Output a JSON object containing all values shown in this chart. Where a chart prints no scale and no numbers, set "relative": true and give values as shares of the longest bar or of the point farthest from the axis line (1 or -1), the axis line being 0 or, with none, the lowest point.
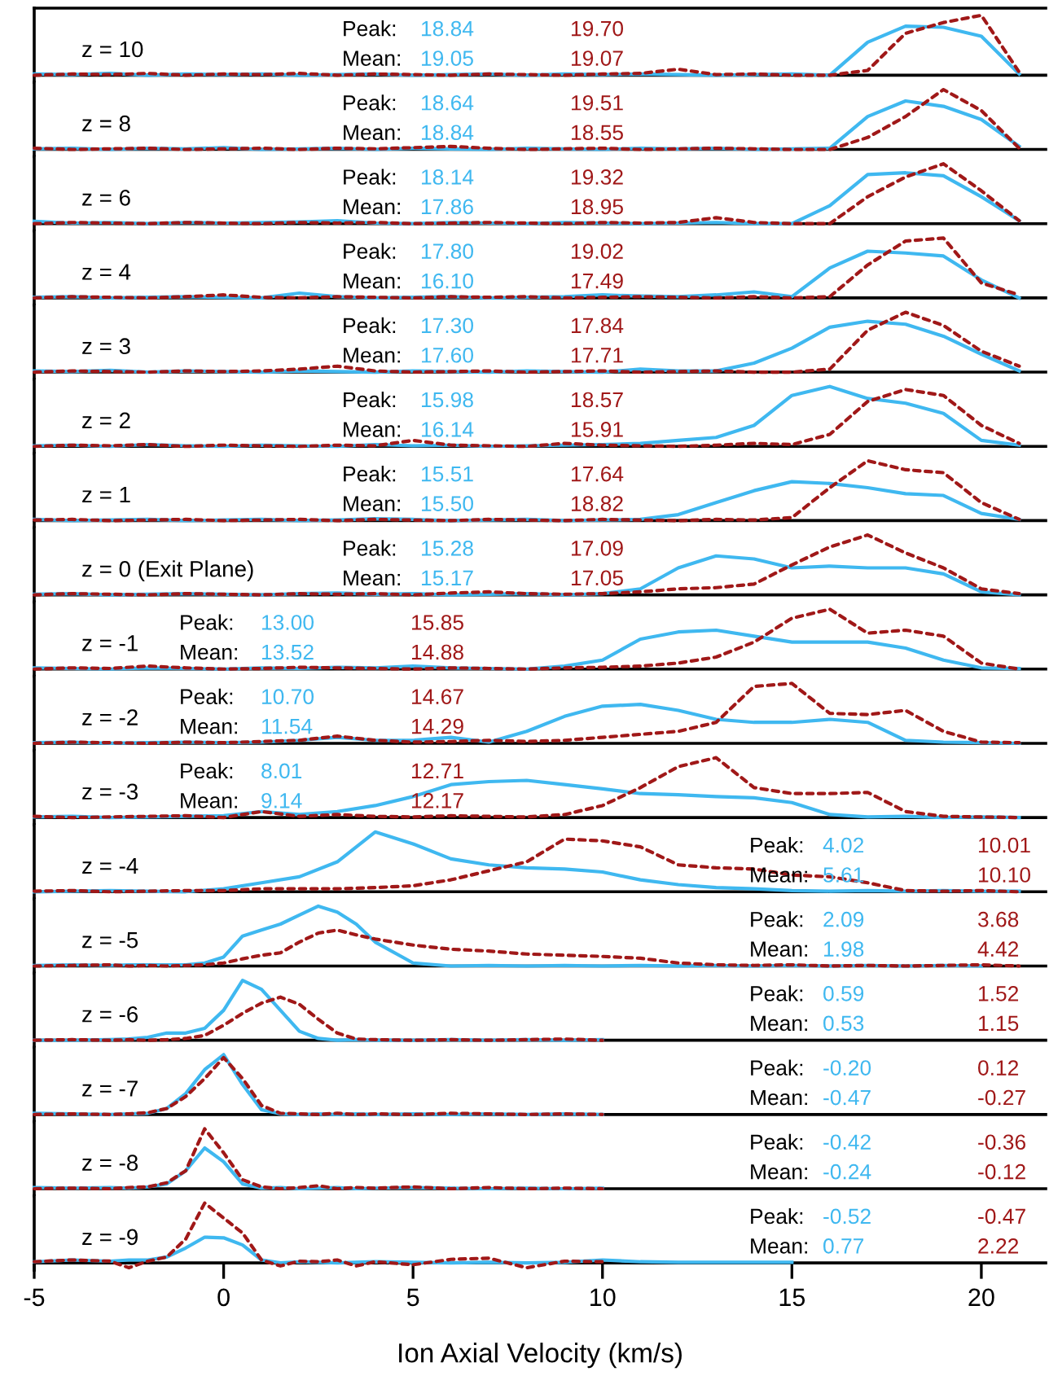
{
  "chart_data": [
    {
      "type": "line",
      "relative": true,
      "xlim": [
        -5,
        21.7
      ],
      "tick_labels": false,
      "x": [
        -5,
        -4,
        -3,
        -2,
        -1,
        0,
        1,
        2,
        3,
        4,
        5,
        6,
        7,
        8,
        9,
        10,
        11,
        12,
        13,
        14,
        15,
        16,
        17,
        18,
        19,
        20,
        21
      ],
      "series": [
        {
          "color": "#3fb8f0",
          "line_style": "solid",
          "values": [
            0.02,
            0.01,
            0.03,
            0.0,
            0.02,
            0.01,
            0.02,
            0.0,
            0.01,
            0.02,
            0.0,
            0.01,
            0.02,
            0.0,
            0.02,
            0.01,
            0.02,
            0.01,
            0.0,
            0.01,
            0.02,
            0.0,
            0.55,
            0.82,
            0.8,
            0.65,
            0.02
          ]
        },
        {
          "color": "#a01818",
          "line_style": "dotted",
          "values": [
            0.0,
            0.02,
            0.01,
            0.03,
            0.0,
            0.02,
            0.01,
            0.03,
            0.0,
            0.02,
            0.01,
            0.0,
            0.02,
            0.01,
            0.0,
            0.02,
            0.03,
            0.1,
            0.01,
            0.02,
            0.0,
            0.0,
            0.08,
            0.7,
            0.88,
            1.0,
            0.05
          ]
        }
      ],
      "annotations": [
        "z = 10",
        "Peak:",
        "Mean:",
        "18.84",
        "19.05",
        "19.70",
        "19.07"
      ]
    },
    {
      "type": "line",
      "relative": true,
      "xlim": [
        -5,
        21.7
      ],
      "tick_labels": false,
      "x": [
        -5,
        -4,
        -3,
        -2,
        -1,
        0,
        1,
        2,
        3,
        4,
        5,
        6,
        7,
        8,
        9,
        10,
        11,
        12,
        13,
        14,
        15,
        16,
        17,
        18,
        19,
        20,
        21
      ],
      "series": [
        {
          "color": "#3fb8f0",
          "line_style": "solid",
          "values": [
            0.01,
            0.02,
            0.0,
            0.02,
            0.01,
            0.03,
            0.0,
            0.01,
            0.02,
            0.0,
            0.02,
            0.01,
            0.0,
            0.02,
            0.01,
            0.0,
            0.02,
            0.01,
            0.02,
            0.0,
            0.01,
            0.02,
            0.55,
            0.81,
            0.72,
            0.5,
            0.05
          ]
        },
        {
          "color": "#a01818",
          "line_style": "dotted",
          "values": [
            0.02,
            0.0,
            0.01,
            0.02,
            0.0,
            0.01,
            0.02,
            0.0,
            0.02,
            0.01,
            0.03,
            0.05,
            0.02,
            0.0,
            0.01,
            0.02,
            0.0,
            0.01,
            0.02,
            0.01,
            0.0,
            0.0,
            0.2,
            0.55,
            1.0,
            0.65,
            0.02
          ]
        }
      ],
      "annotations": [
        "z = 8",
        "Peak:",
        "Mean:",
        "18.64",
        "18.84",
        "19.51",
        "18.55"
      ]
    },
    {
      "type": "line",
      "relative": true,
      "xlim": [
        -5,
        21.7
      ],
      "tick_labels": false,
      "x": [
        -5,
        -4,
        -3,
        -2,
        -1,
        0,
        1,
        2,
        3,
        4,
        5,
        6,
        7,
        8,
        9,
        10,
        11,
        12,
        13,
        14,
        15,
        16,
        17,
        18,
        19,
        20,
        21
      ],
      "series": [
        {
          "color": "#3fb8f0",
          "line_style": "solid",
          "values": [
            0.04,
            0.01,
            0.02,
            0.0,
            0.02,
            0.01,
            0.02,
            0.03,
            0.05,
            0.01,
            0.0,
            0.02,
            0.01,
            0.0,
            0.02,
            0.01,
            0.0,
            0.01,
            0.02,
            0.0,
            0.0,
            0.3,
            0.82,
            0.85,
            0.8,
            0.45,
            0.05
          ]
        },
        {
          "color": "#a01818",
          "line_style": "dotted",
          "values": [
            0.0,
            0.02,
            0.01,
            0.0,
            0.02,
            0.01,
            0.0,
            0.02,
            0.01,
            0.02,
            0.0,
            0.01,
            0.02,
            0.01,
            0.0,
            0.02,
            0.01,
            0.02,
            0.1,
            0.02,
            0.0,
            0.0,
            0.45,
            0.78,
            1.0,
            0.55,
            0.05
          ]
        }
      ],
      "annotations": [
        "z = 6",
        "Peak:",
        "Mean:",
        "18.14",
        "17.86",
        "19.32",
        "18.95"
      ]
    },
    {
      "type": "line",
      "relative": true,
      "xlim": [
        -5,
        21.7
      ],
      "tick_labels": false,
      "x": [
        -5,
        -4,
        -3,
        -2,
        -1,
        0,
        1,
        2,
        3,
        4,
        5,
        6,
        7,
        8,
        9,
        10,
        11,
        12,
        13,
        14,
        15,
        16,
        17,
        18,
        19,
        20,
        21
      ],
      "series": [
        {
          "color": "#3fb8f0",
          "line_style": "solid",
          "values": [
            0.01,
            0.02,
            0.0,
            0.01,
            0.02,
            0.01,
            0.0,
            0.08,
            0.02,
            0.0,
            0.01,
            0.02,
            0.0,
            0.01,
            0.02,
            0.05,
            0.03,
            0.02,
            0.05,
            0.1,
            0.02,
            0.5,
            0.78,
            0.75,
            0.7,
            0.3,
            0.0
          ]
        },
        {
          "color": "#a01818",
          "line_style": "dotted",
          "values": [
            0.0,
            0.02,
            0.01,
            0.0,
            0.02,
            0.05,
            0.01,
            0.0,
            0.02,
            0.01,
            0.0,
            0.02,
            0.01,
            0.02,
            0.0,
            0.01,
            0.02,
            0.01,
            0.0,
            0.02,
            0.0,
            0.02,
            0.55,
            0.95,
            1.0,
            0.25,
            0.05
          ]
        }
      ],
      "annotations": [
        "z = 4",
        "Peak:",
        "Mean:",
        "17.80",
        "16.10",
        "19.02",
        "17.49"
      ]
    },
    {
      "type": "line",
      "relative": true,
      "xlim": [
        -5,
        21.7
      ],
      "tick_labels": false,
      "x": [
        -5,
        -4,
        -3,
        -2,
        -1,
        0,
        1,
        2,
        3,
        4,
        5,
        6,
        7,
        8,
        9,
        10,
        11,
        12,
        13,
        14,
        15,
        16,
        17,
        18,
        19,
        20,
        21
      ],
      "series": [
        {
          "color": "#3fb8f0",
          "line_style": "solid",
          "values": [
            0.02,
            0.01,
            0.03,
            0.0,
            0.02,
            0.01,
            0.0,
            0.02,
            0.01,
            0.0,
            0.02,
            0.01,
            0.0,
            0.02,
            0.01,
            0.0,
            0.05,
            0.02,
            0.02,
            0.15,
            0.4,
            0.75,
            0.85,
            0.8,
            0.6,
            0.3,
            0.02
          ]
        },
        {
          "color": "#a01818",
          "line_style": "dotted",
          "values": [
            0.0,
            0.02,
            0.01,
            0.0,
            0.02,
            0.01,
            0.02,
            0.05,
            0.1,
            0.02,
            0.0,
            0.01,
            0.02,
            0.0,
            0.01,
            0.02,
            0.0,
            0.01,
            0.02,
            0.0,
            0.0,
            0.05,
            0.7,
            1.0,
            0.78,
            0.35,
            0.1
          ]
        }
      ],
      "annotations": [
        "z = 3",
        "Peak:",
        "Mean:",
        "17.30",
        "17.60",
        "17.84",
        "17.71"
      ]
    },
    {
      "type": "line",
      "relative": true,
      "xlim": [
        -5,
        21.7
      ],
      "tick_labels": false,
      "x": [
        -5,
        -4,
        -3,
        -2,
        -1,
        0,
        1,
        2,
        3,
        4,
        5,
        6,
        7,
        8,
        9,
        10,
        11,
        12,
        13,
        14,
        15,
        16,
        17,
        18,
        19,
        20,
        21
      ],
      "series": [
        {
          "color": "#3fb8f0",
          "line_style": "solid",
          "values": [
            0.01,
            0.02,
            0.0,
            0.03,
            0.01,
            0.0,
            0.02,
            0.01,
            0.0,
            0.03,
            0.01,
            0.02,
            0.0,
            0.01,
            0.02,
            0.03,
            0.05,
            0.1,
            0.15,
            0.35,
            0.85,
            1.0,
            0.8,
            0.72,
            0.55,
            0.1,
            0.02
          ]
        },
        {
          "color": "#a01818",
          "line_style": "dotted",
          "values": [
            0.0,
            0.02,
            0.01,
            0.03,
            0.0,
            0.02,
            0.01,
            0.0,
            0.02,
            0.01,
            0.1,
            0.02,
            0.01,
            0.0,
            0.05,
            0.02,
            0.01,
            0.0,
            0.02,
            0.05,
            0.03,
            0.2,
            0.75,
            0.95,
            0.85,
            0.35,
            0.05
          ]
        }
      ],
      "annotations": [
        "z = 2",
        "Peak:",
        "Mean:",
        "15.98",
        "16.14",
        "18.57",
        "15.91"
      ]
    },
    {
      "type": "line",
      "relative": true,
      "xlim": [
        -5,
        21.7
      ],
      "tick_labels": false,
      "x": [
        -5,
        -4,
        -3,
        -2,
        -1,
        0,
        1,
        2,
        3,
        4,
        5,
        6,
        7,
        8,
        9,
        10,
        11,
        12,
        13,
        14,
        15,
        16,
        17,
        18,
        19,
        20,
        21
      ],
      "series": [
        {
          "color": "#3fb8f0",
          "line_style": "solid",
          "values": [
            0.02,
            0.0,
            0.01,
            0.02,
            0.0,
            0.01,
            0.02,
            0.0,
            0.01,
            0.03,
            0.02,
            0.0,
            0.01,
            0.02,
            0.0,
            0.01,
            0.02,
            0.1,
            0.3,
            0.5,
            0.65,
            0.62,
            0.55,
            0.45,
            0.42,
            0.12,
            0.02
          ]
        },
        {
          "color": "#a01818",
          "line_style": "dotted",
          "values": [
            0.01,
            0.02,
            0.0,
            0.01,
            0.02,
            0.0,
            0.01,
            0.02,
            0.0,
            0.02,
            0.01,
            0.0,
            0.02,
            0.01,
            0.0,
            0.02,
            0.01,
            0.0,
            0.02,
            0.01,
            0.05,
            0.55,
            1.0,
            0.85,
            0.8,
            0.3,
            0.02
          ]
        }
      ],
      "annotations": [
        "z = 1",
        "Peak:",
        "Mean:",
        "15.51",
        "15.50",
        "17.64",
        "18.82"
      ]
    },
    {
      "type": "line",
      "relative": true,
      "xlim": [
        -5,
        21.7
      ],
      "tick_labels": false,
      "x": [
        -5,
        -4,
        -3,
        -2,
        -1,
        0,
        1,
        2,
        3,
        4,
        5,
        6,
        7,
        8,
        9,
        10,
        11,
        12,
        13,
        14,
        15,
        16,
        17,
        18,
        19,
        20,
        21
      ],
      "series": [
        {
          "color": "#3fb8f0",
          "line_style": "solid",
          "values": [
            0.01,
            0.02,
            0.0,
            0.01,
            0.02,
            0.01,
            0.0,
            0.02,
            0.03,
            0.01,
            0.02,
            0.0,
            0.01,
            0.02,
            0.0,
            0.02,
            0.1,
            0.45,
            0.65,
            0.6,
            0.45,
            0.48,
            0.45,
            0.45,
            0.35,
            0.05,
            0.0
          ]
        },
        {
          "color": "#a01818",
          "line_style": "dotted",
          "values": [
            0.0,
            0.02,
            0.01,
            0.0,
            0.02,
            0.01,
            0.0,
            0.02,
            0.01,
            0.02,
            0.0,
            0.03,
            0.05,
            0.02,
            0.01,
            0.02,
            0.05,
            0.1,
            0.12,
            0.18,
            0.5,
            0.8,
            1.0,
            0.7,
            0.45,
            0.1,
            0.02
          ]
        }
      ],
      "annotations": [
        "z = 0 (Exit Plane)",
        "Peak:",
        "Mean:",
        "15.28",
        "15.17",
        "17.09",
        "17.05"
      ]
    },
    {
      "type": "line",
      "relative": true,
      "xlim": [
        -5,
        21.7
      ],
      "tick_labels": false,
      "x": [
        -5,
        -4,
        -3,
        -2,
        -1,
        0,
        1,
        2,
        3,
        4,
        5,
        6,
        7,
        8,
        9,
        10,
        11,
        12,
        13,
        14,
        15,
        16,
        17,
        18,
        19,
        20,
        21
      ],
      "series": [
        {
          "color": "#3fb8f0",
          "line_style": "solid",
          "values": [
            0.02,
            0.01,
            0.0,
            0.02,
            0.01,
            0.0,
            0.02,
            0.01,
            0.03,
            0.02,
            0.05,
            0.02,
            0.01,
            0.0,
            0.05,
            0.15,
            0.5,
            0.62,
            0.65,
            0.55,
            0.45,
            0.45,
            0.45,
            0.35,
            0.15,
            0.02,
            0.01
          ]
        },
        {
          "color": "#a01818",
          "line_style": "dotted",
          "values": [
            0.0,
            0.02,
            0.01,
            0.05,
            0.02,
            0.0,
            0.01,
            0.03,
            0.02,
            0.01,
            0.0,
            0.02,
            0.01,
            0.0,
            0.02,
            0.03,
            0.05,
            0.1,
            0.2,
            0.45,
            0.85,
            1.0,
            0.6,
            0.65,
            0.55,
            0.1,
            0.0
          ]
        }
      ],
      "annotations": [
        "z = -1",
        "Peak:",
        "Mean:",
        "13.00",
        "13.52",
        "15.85",
        "14.88"
      ]
    },
    {
      "type": "line",
      "relative": true,
      "xlim": [
        -5,
        21.7
      ],
      "tick_labels": false,
      "x": [
        -5,
        -4,
        -3,
        -2,
        -1,
        0,
        1,
        2,
        3,
        4,
        5,
        6,
        7,
        8,
        9,
        10,
        11,
        12,
        13,
        14,
        15,
        16,
        17,
        18,
        19,
        20,
        21
      ],
      "series": [
        {
          "color": "#3fb8f0",
          "line_style": "solid",
          "values": [
            0.01,
            0.02,
            0.0,
            0.01,
            0.02,
            0.01,
            0.02,
            0.05,
            0.1,
            0.05,
            0.05,
            0.1,
            0.02,
            0.2,
            0.45,
            0.62,
            0.65,
            0.55,
            0.4,
            0.35,
            0.35,
            0.4,
            0.35,
            0.05,
            0.02,
            0.01,
            0.0
          ]
        },
        {
          "color": "#a01818",
          "line_style": "dotted",
          "values": [
            0.0,
            0.02,
            0.01,
            0.0,
            0.02,
            0.01,
            0.03,
            0.05,
            0.12,
            0.05,
            0.02,
            0.03,
            0.05,
            0.03,
            0.05,
            0.1,
            0.15,
            0.2,
            0.35,
            0.95,
            1.0,
            0.5,
            0.48,
            0.55,
            0.2,
            0.02,
            0.01
          ]
        }
      ],
      "annotations": [
        "z = -2",
        "Peak:",
        "Mean:",
        "10.70",
        "11.54",
        "14.67",
        "14.29"
      ]
    },
    {
      "type": "line",
      "relative": true,
      "xlim": [
        -5,
        21.7
      ],
      "tick_labels": false,
      "x": [
        -5,
        -4,
        -3,
        -2,
        -1,
        0,
        1,
        2,
        3,
        4,
        5,
        6,
        7,
        8,
        9,
        10,
        11,
        12,
        13,
        14,
        15,
        16,
        17,
        18,
        19,
        20,
        21
      ],
      "series": [
        {
          "color": "#3fb8f0",
          "line_style": "solid",
          "values": [
            0.01,
            0.02,
            0.0,
            0.01,
            0.02,
            0.03,
            0.1,
            0.05,
            0.1,
            0.2,
            0.35,
            0.55,
            0.6,
            0.62,
            0.55,
            0.48,
            0.4,
            0.38,
            0.35,
            0.33,
            0.25,
            0.05,
            0.01,
            0.02,
            0.0,
            0.01,
            0.0
          ]
        },
        {
          "color": "#a01818",
          "line_style": "dotted",
          "values": [
            0.02,
            0.0,
            0.01,
            0.02,
            0.03,
            0.0,
            0.1,
            0.02,
            0.05,
            0.02,
            0.01,
            0.03,
            0.02,
            0.01,
            0.05,
            0.2,
            0.5,
            0.85,
            1.0,
            0.5,
            0.4,
            0.4,
            0.42,
            0.1,
            0.02,
            0.01,
            0.0
          ]
        }
      ],
      "annotations": [
        "z = -3",
        "Peak:",
        "Mean:",
        "8.01",
        "9.14",
        "12.71",
        "12.17"
      ]
    },
    {
      "type": "line",
      "relative": true,
      "xlim": [
        -5,
        21.7
      ],
      "tick_labels": false,
      "x": [
        -5,
        -4,
        -3,
        -2,
        -1,
        0,
        1,
        2,
        3,
        4,
        5,
        6,
        7,
        8,
        9,
        10,
        11,
        12,
        13,
        14,
        15,
        16,
        17,
        18,
        19,
        20,
        21
      ],
      "series": [
        {
          "color": "#3fb8f0",
          "line_style": "solid",
          "values": [
            0.0,
            0.01,
            0.02,
            0.01,
            0.0,
            0.05,
            0.15,
            0.25,
            0.5,
            1.0,
            0.8,
            0.55,
            0.45,
            0.4,
            0.38,
            0.33,
            0.2,
            0.12,
            0.07,
            0.05,
            0.02,
            0.01,
            0.02,
            0.01,
            0.02,
            0.01,
            0.01
          ]
        },
        {
          "color": "#a01818",
          "line_style": "dotted",
          "values": [
            0.01,
            0.02,
            0.0,
            0.01,
            0.02,
            0.02,
            0.05,
            0.05,
            0.05,
            0.07,
            0.1,
            0.2,
            0.35,
            0.5,
            0.88,
            0.85,
            0.75,
            0.45,
            0.4,
            0.38,
            0.28,
            0.25,
            0.15,
            0.02,
            0.01,
            0.02,
            0.0
          ]
        }
      ],
      "annotations": [
        "z = -4",
        "Peak:",
        "Mean:",
        "4.02",
        "5.61",
        "10.01",
        "10.10"
      ]
    },
    {
      "type": "line",
      "relative": true,
      "xlim": [
        -5,
        21.7
      ],
      "tick_labels": false,
      "x": [
        -5,
        -4,
        -3,
        -2.5,
        -2,
        -1.5,
        -1,
        -0.5,
        0,
        0.5,
        1,
        1.5,
        2,
        2.5,
        3,
        3.5,
        4,
        5,
        6,
        7,
        8,
        9,
        10,
        11,
        12,
        13,
        14,
        15,
        16,
        17,
        18,
        19,
        20,
        21
      ],
      "series": [
        {
          "color": "#3fb8f0",
          "line_style": "solid",
          "values": [
            0.01,
            0.02,
            0.01,
            0.02,
            0.02,
            0.02,
            0.02,
            0.05,
            0.15,
            0.5,
            0.6,
            0.7,
            0.85,
            1.0,
            0.9,
            0.7,
            0.4,
            0.05,
            0.0,
            0.01,
            0.0,
            0.01,
            0.0,
            0.01,
            0.0,
            0.01,
            0.0,
            0.01,
            0.0,
            0.01,
            0.0,
            0.01,
            0.0,
            null
          ]
        },
        {
          "color": "#a01818",
          "line_style": "dotted",
          "values": [
            0.0,
            0.01,
            0.02,
            0.0,
            0.01,
            0.0,
            0.01,
            0.02,
            0.05,
            0.12,
            0.18,
            0.22,
            0.4,
            0.55,
            0.6,
            0.52,
            0.45,
            0.35,
            0.28,
            0.25,
            0.2,
            0.18,
            0.16,
            0.13,
            0.05,
            0.02,
            0.01,
            0.02,
            0.0,
            0.01,
            0.0,
            0.01,
            0.02,
            0.0
          ]
        }
      ],
      "annotations": [
        "z = -5",
        "Peak:",
        "Mean:",
        "2.09",
        "1.98",
        "3.68",
        "4.42"
      ]
    },
    {
      "type": "line",
      "relative": true,
      "xlim": [
        -5,
        21.7
      ],
      "tick_labels": false,
      "series": [
        {
          "color": "#3fb8f0",
          "line_style": "solid",
          "x": [
            -5,
            -4,
            -3,
            -2.5,
            -2,
            -1.5,
            -1,
            -0.5,
            0,
            0.5,
            1,
            1.5,
            2,
            2.5,
            3,
            3.5,
            4,
            5,
            6,
            7,
            8,
            9,
            10
          ],
          "values": [
            0.0,
            0.0,
            0.01,
            0.02,
            0.05,
            0.12,
            0.12,
            0.2,
            0.5,
            1.0,
            0.85,
            0.5,
            0.15,
            0.03,
            0.0,
            0.01,
            0.0,
            0.0,
            0.01,
            0.0,
            0.01,
            0.0,
            0.01
          ]
        },
        {
          "color": "#a01818",
          "line_style": "dotted",
          "x": [
            -5,
            -4,
            -3,
            -2.5,
            -2,
            -1.5,
            -1,
            -0.5,
            0,
            0.5,
            1,
            1.5,
            2,
            2.5,
            3,
            3.5,
            4,
            5,
            6,
            7,
            8,
            9,
            10
          ],
          "values": [
            0.0,
            0.01,
            0.0,
            0.01,
            0.0,
            0.01,
            0.03,
            0.08,
            0.25,
            0.45,
            0.62,
            0.72,
            0.6,
            0.35,
            0.12,
            0.02,
            0.01,
            0.0,
            0.01,
            0.0,
            0.01,
            0.02,
            0.0
          ]
        }
      ],
      "annotations": [
        "z = -6",
        "Peak:",
        "Mean:",
        "0.59",
        "0.53",
        "1.52",
        "1.15"
      ]
    },
    {
      "type": "line",
      "relative": true,
      "xlim": [
        -5,
        21.7
      ],
      "tick_labels": false,
      "series": [
        {
          "color": "#3fb8f0",
          "line_style": "solid",
          "x": [
            -5,
            -4,
            -3,
            -2.5,
            -2,
            -1.5,
            -1,
            -0.5,
            0,
            0.5,
            1,
            1.5,
            2,
            2.5,
            3,
            3.5,
            4,
            5,
            6,
            7,
            8,
            9,
            10
          ],
          "values": [
            0.02,
            0.01,
            0.0,
            0.01,
            0.02,
            0.1,
            0.35,
            0.75,
            1.0,
            0.5,
            0.08,
            0.01,
            0.0,
            0.01,
            0.0,
            0.01,
            0.0,
            0.01,
            0.0,
            0.01,
            0.0,
            0.01,
            0.0
          ]
        },
        {
          "color": "#a01818",
          "line_style": "dotted",
          "x": [
            -5,
            -4,
            -3,
            -2.5,
            -2,
            -1.5,
            -1,
            -0.5,
            0,
            0.5,
            1,
            1.5,
            2,
            2.5,
            3,
            3.5,
            4,
            5,
            6,
            7,
            8,
            9,
            10
          ],
          "values": [
            0.0,
            0.01,
            0.0,
            0.01,
            0.03,
            0.1,
            0.3,
            0.6,
            0.95,
            0.6,
            0.15,
            0.02,
            0.01,
            0.0,
            0.02,
            0.0,
            0.01,
            0.0,
            0.02,
            0.01,
            0.0,
            0.01,
            0.0
          ]
        }
      ],
      "annotations": [
        "z = -7",
        "Peak:",
        "Mean:",
        "-0.20",
        "-0.47",
        "0.12",
        "-0.27"
      ]
    },
    {
      "type": "line",
      "relative": true,
      "xlim": [
        -5,
        21.7
      ],
      "tick_labels": false,
      "series": [
        {
          "color": "#3fb8f0",
          "line_style": "solid",
          "x": [
            -5,
            -4,
            -3,
            -2.5,
            -2,
            -1.5,
            -1,
            -0.5,
            0,
            0.5,
            1,
            1.5,
            2,
            2.5,
            3,
            3.5,
            4,
            5,
            6,
            7,
            8,
            9,
            10
          ],
          "values": [
            0.02,
            0.01,
            0.02,
            0.01,
            0.03,
            0.08,
            0.3,
            0.68,
            0.45,
            0.08,
            0.01,
            0.02,
            0.0,
            0.01,
            0.02,
            0.0,
            0.01,
            0.02,
            0.01,
            0.0,
            0.01,
            0.0,
            0.01
          ]
        },
        {
          "color": "#a01818",
          "line_style": "dotted",
          "x": [
            -5,
            -4,
            -3,
            -2.5,
            -2,
            -1.5,
            -1,
            -0.5,
            0,
            0.5,
            1,
            1.5,
            2,
            2.5,
            3,
            3.5,
            4,
            5,
            6,
            7,
            8,
            9,
            10
          ],
          "values": [
            0.0,
            0.01,
            0.0,
            0.02,
            0.03,
            0.1,
            0.3,
            1.0,
            0.6,
            0.15,
            0.03,
            0.0,
            0.02,
            0.05,
            0.0,
            0.02,
            0.01,
            0.03,
            0.0,
            0.02,
            0.0,
            0.01,
            0.0
          ]
        }
      ],
      "annotations": [
        "z = -8",
        "Peak:",
        "Mean:",
        "-0.42",
        "-0.24",
        "-0.36",
        "-0.12"
      ]
    },
    {
      "type": "line",
      "relative": true,
      "xlim": [
        -5,
        21.7
      ],
      "xticks": [
        -5,
        0,
        5,
        10,
        15,
        20
      ],
      "tick_labels": "x",
      "xlabel": "Ion Axial Velocity (km/s)",
      "series": [
        {
          "color": "#3fb8f0",
          "line_style": "solid",
          "x": [
            -5,
            -4,
            -3,
            -2.5,
            -2,
            -1.5,
            -1,
            -0.5,
            0,
            0.5,
            1,
            1.5,
            2,
            2.5,
            3,
            3.5,
            4,
            5,
            6,
            7,
            8,
            9,
            10,
            11,
            12,
            13,
            14,
            15
          ],
          "values": [
            0.02,
            0.05,
            0.03,
            0.05,
            0.05,
            0.1,
            0.25,
            0.43,
            0.42,
            0.3,
            0.05,
            0.0,
            0.02,
            0.01,
            0.0,
            0.01,
            0.02,
            0.01,
            0.0,
            0.01,
            0.0,
            0.01,
            0.05,
            0.02,
            0.01,
            0.01,
            0.01,
            0.01
          ]
        },
        {
          "color": "#a01818",
          "line_style": "dotted",
          "x": [
            -5,
            -4,
            -3,
            -2.5,
            -2,
            -1.5,
            -1,
            -0.5,
            0,
            0.5,
            1,
            1.5,
            2,
            2.5,
            3,
            3.5,
            4,
            5,
            6,
            7,
            8,
            9,
            10
          ],
          "values": [
            0.02,
            0.05,
            0.03,
            -0.08,
            0.03,
            0.1,
            0.4,
            1.0,
            0.75,
            0.5,
            0.05,
            -0.05,
            0.03,
            0.02,
            0.05,
            -0.05,
            0.02,
            -0.03,
            0.06,
            0.08,
            -0.08,
            0.03,
            0.02
          ]
        }
      ],
      "annotations": [
        "z = -9",
        "Peak:",
        "Mean:",
        "-0.52",
        "0.77",
        "-0.47",
        "2.22"
      ]
    }
  ]
}
